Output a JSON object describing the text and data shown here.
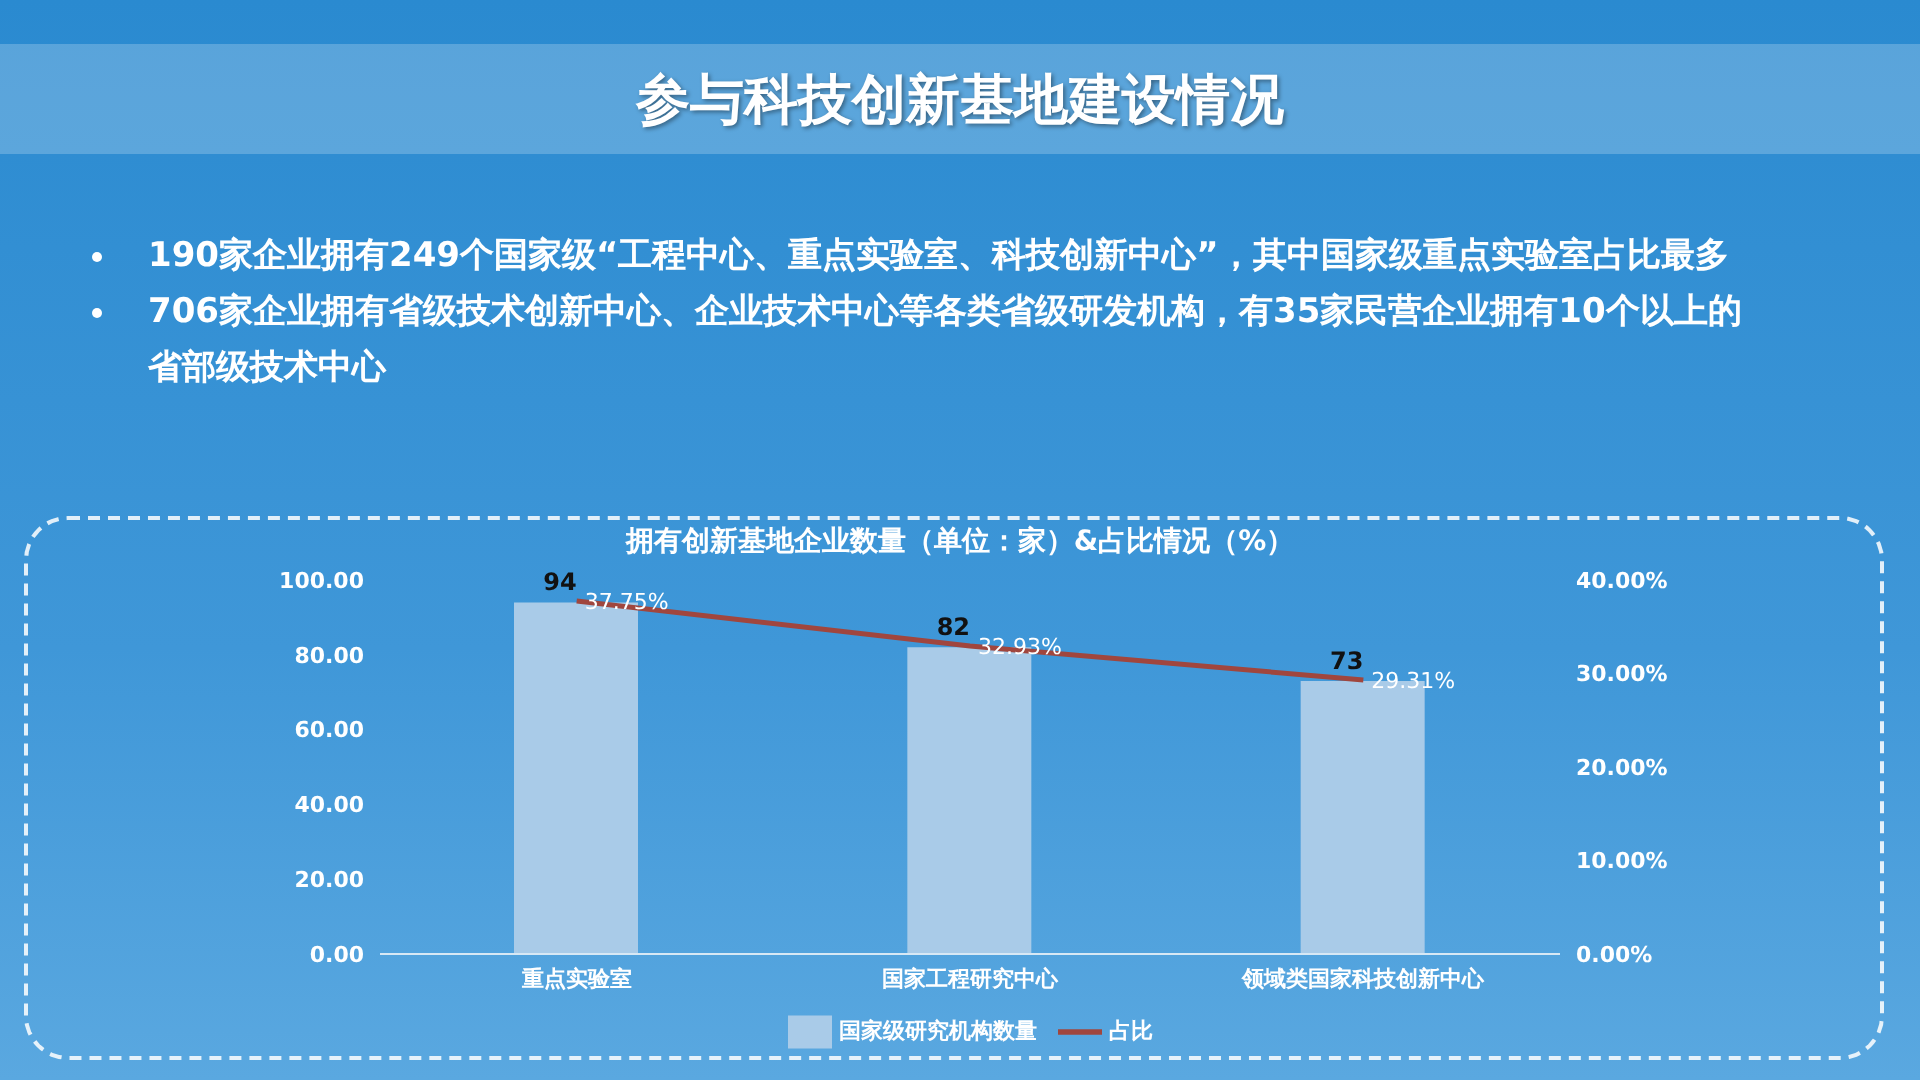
{
  "chart_data": {
    "type": "bar",
    "title": "参与科技创新基地建设情况",
    "subtitle": "拥有创新基地企业数量（单位：家）&占比情况（%）",
    "annotations": [
      "190家企业拥有249个国家级“工程中心、重点实验室、科技创新中心”，其中国家级重点实验室占比最多",
      "706家企业拥有省级技术创新中心、企业技术中心等各类省级研发机构，有35家民营企业拥有10个以上的省部级技术中心"
    ],
    "categories": [
      "重点实验室",
      "国家工程研究中心",
      "领域类国家科技创新中心"
    ],
    "series": [
      {
        "name": "国家级研究机构数量",
        "color": "#a9cbe8",
        "values": [
          94,
          82,
          73
        ],
        "value_labels": [
          "94",
          "82",
          "73"
        ]
      },
      {
        "name": "占比",
        "type": "line",
        "axis": "y2",
        "color": "#a0463e",
        "values": [
          37.75,
          32.93,
          29.31
        ],
        "value_labels": [
          "37.75%",
          "32.93%",
          "29.31%"
        ]
      }
    ],
    "ylim": [
      0,
      100
    ],
    "yticks": [
      {
        "value": 0,
        "label": "0.00"
      },
      {
        "value": 20,
        "label": "20.00"
      },
      {
        "value": 40,
        "label": "40.00"
      },
      {
        "value": 60,
        "label": "60.00"
      },
      {
        "value": 80,
        "label": "80.00"
      },
      {
        "value": 100,
        "label": "100.00"
      }
    ],
    "y2lim": [
      0,
      40
    ],
    "y2ticks": [
      {
        "value": 0,
        "label": "0.00%"
      },
      {
        "value": 10,
        "label": "10.00%"
      },
      {
        "value": 20,
        "label": "20.00%"
      },
      {
        "value": 30,
        "label": "30.00%"
      },
      {
        "value": 40,
        "label": "40.00%"
      }
    ],
    "grid": false,
    "legend": "bottom",
    "marker": "none"
  }
}
